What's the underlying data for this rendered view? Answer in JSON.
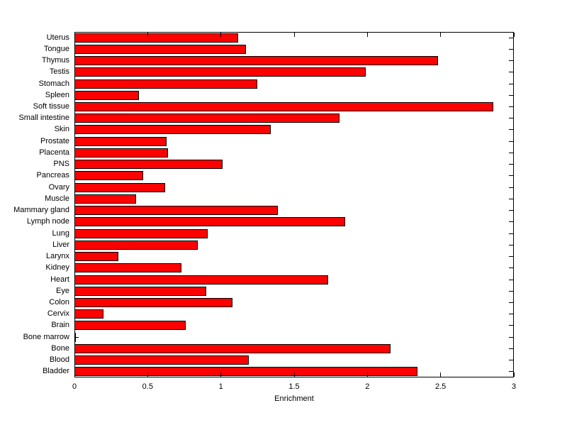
{
  "chart_data": {
    "type": "bar",
    "orientation": "horizontal",
    "title": "",
    "xlabel": "Enrichment",
    "ylabel": "",
    "xlim": [
      0,
      3
    ],
    "xticks": [
      0,
      0.5,
      1,
      1.5,
      2,
      2.5,
      3
    ],
    "xtick_labels": [
      "0",
      "0.5",
      "1",
      "1.5",
      "2",
      "2.5",
      "3"
    ],
    "grid": false,
    "legend": null,
    "background_color": "#FFFFFF",
    "axis_color": "#000000",
    "bar_color": "#FF0000",
    "bar_edge_color": "#000000",
    "categories": [
      "Uterus",
      "Tongue",
      "Thymus",
      "Testis",
      "Stomach",
      "Spleen",
      "Soft tissue",
      "Small intestine",
      "Skin",
      "Prostate",
      "Placenta",
      "PNS",
      "Pancreas",
      "Ovary",
      "Muscle",
      "Mammary gland",
      "Lymph node",
      "Lung",
      "Liver",
      "Larynx",
      "Kidney",
      "Heart",
      "Eye",
      "Colon",
      "Cervix",
      "Brain",
      "Bone marrow",
      "Bone",
      "Blood",
      "Bladder"
    ],
    "values": [
      1.12,
      1.17,
      2.48,
      1.99,
      1.25,
      0.44,
      2.86,
      1.81,
      1.34,
      0.63,
      0.64,
      1.01,
      0.47,
      0.62,
      0.42,
      1.39,
      1.85,
      0.91,
      0.84,
      0.3,
      0.73,
      1.73,
      0.9,
      1.08,
      0.2,
      0.76,
      0.01,
      2.16,
      1.19,
      2.34
    ]
  }
}
